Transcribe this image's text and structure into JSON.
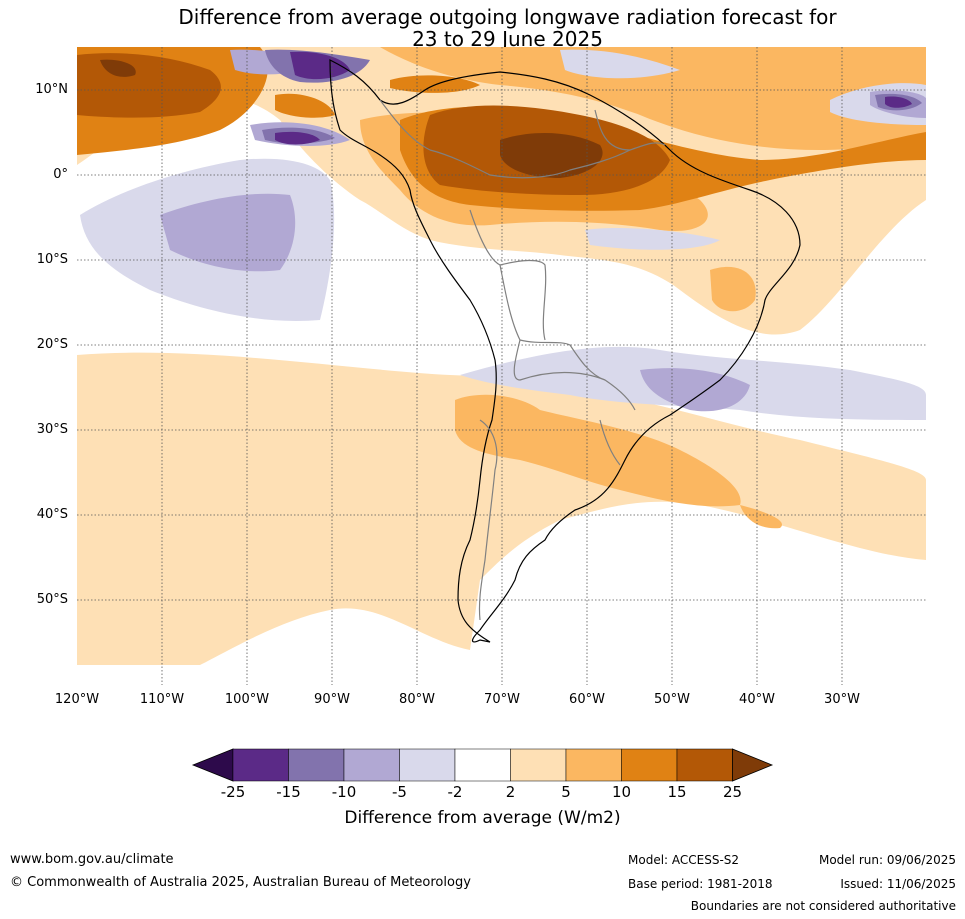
{
  "title_line1": "Difference from average outgoing longwave radiation forecast for",
  "title_line2": "23 to 29 June 2025",
  "lat_labels": [
    "10°N",
    "0°",
    "10°S",
    "20°S",
    "30°S",
    "40°S",
    "50°S"
  ],
  "lon_labels": [
    "120°W",
    "110°W",
    "100°W",
    "90°W",
    "80°W",
    "70°W",
    "60°W",
    "50°W",
    "40°W",
    "30°W"
  ],
  "colorbar": {
    "ticks": [
      "-25",
      "-15",
      "-10",
      "-5",
      "-2",
      "2",
      "5",
      "10",
      "15",
      "25"
    ],
    "colors": [
      "#2d0a4b",
      "#5b2a87",
      "#8273ad",
      "#b1a8d3",
      "#d9d9eb",
      "#ffffff",
      "#fee0b5",
      "#fbb761",
      "#e08214",
      "#b35806",
      "#7f3b08"
    ],
    "title": "Difference from average (W/m2)"
  },
  "footer": {
    "url": "www.bom.gov.au/climate",
    "copyright": "© Commonwealth of Australia 2025, Australian Bureau of Meteorology",
    "model": "Model: ACCESS-S2",
    "base_period": "Base period: 1981-2018",
    "model_run": "Model run: 09/06/2025",
    "issued": "Issued: 11/06/2025",
    "disclaimer": "Boundaries are not considered authoritative"
  }
}
